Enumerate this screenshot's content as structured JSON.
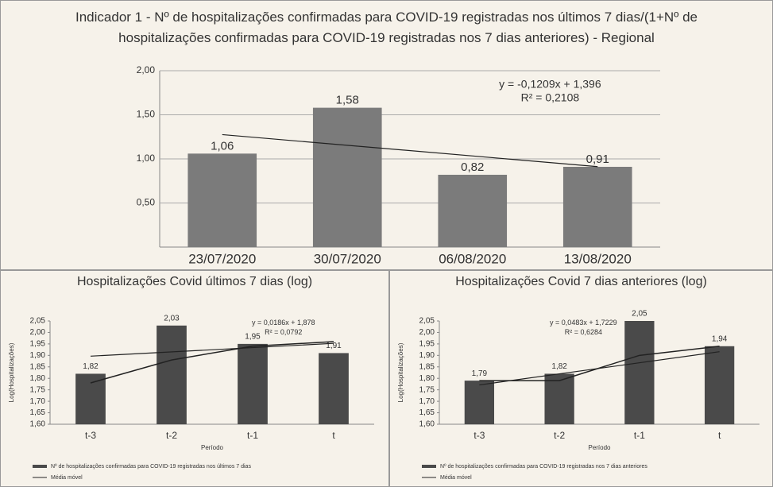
{
  "chart_data": [
    {
      "type": "bar",
      "title": "Indicador 1 - Nº de hospitalizações confirmadas para COVID-19 registradas nos últimos 7 dias/(1+Nº de hospitalizações confirmadas para COVID-19 registradas nos 7 dias anteriores) - Regional",
      "categories": [
        "23/07/2020",
        "30/07/2020",
        "06/08/2020",
        "13/08/2020"
      ],
      "series": [
        {
          "color": "#7b7b7b",
          "values": [
            1.06,
            1.58,
            0.82,
            0.91
          ],
          "value_labels": [
            "1,06",
            "1,58",
            "0,82",
            "0,91"
          ]
        }
      ],
      "ylim": [
        0,
        2.0
      ],
      "yticks": [
        {
          "value": 0.5,
          "label": "0,50"
        },
        {
          "value": 1.0,
          "label": "1,00"
        },
        {
          "value": 1.5,
          "label": "1,50"
        },
        {
          "value": 2.0,
          "label": "2,00"
        }
      ],
      "grid": true,
      "trendline": {
        "slope": -0.1209,
        "intercept": 1.396,
        "equation": "y = -0,1209x + 1,396",
        "r2": "R² = 0,2108"
      }
    },
    {
      "type": "bar",
      "title": "Hospitalizações Covid últimos 7 dias (log)",
      "y_label": "Log(Hospitalizações)",
      "x_label": "Período",
      "categories": [
        "t-3",
        "t-2",
        "t-1",
        "t"
      ],
      "series": [
        {
          "name": "Nº de hospitalizações confirmadas para COVID-19 registradas nos últimos 7 dias",
          "color": "#4a4a4a",
          "values": [
            1.82,
            2.03,
            1.95,
            1.91
          ],
          "value_labels": [
            "1,82",
            "2,03",
            "1,95",
            "1,91"
          ]
        },
        {
          "name": "Média móvel",
          "type": "line",
          "color": "#222222",
          "values": [
            1.78,
            1.88,
            1.94,
            1.96
          ]
        }
      ],
      "ylim": [
        1.6,
        2.05
      ],
      "yticks": [
        {
          "value": 1.6,
          "label": "1,60"
        },
        {
          "value": 1.65,
          "label": "1,65"
        },
        {
          "value": 1.7,
          "label": "1,70"
        },
        {
          "value": 1.75,
          "label": "1,75"
        },
        {
          "value": 1.8,
          "label": "1,80"
        },
        {
          "value": 1.85,
          "label": "1,85"
        },
        {
          "value": 1.9,
          "label": "1,90"
        },
        {
          "value": 1.95,
          "label": "1,95"
        },
        {
          "value": 2.0,
          "label": "2,00"
        },
        {
          "value": 2.05,
          "label": "2,05"
        }
      ],
      "grid": false,
      "trendline": {
        "slope": 0.0186,
        "intercept": 1.878,
        "equation": "y = 0,0186x + 1,878",
        "r2": "R² = 0,0792"
      }
    },
    {
      "type": "bar",
      "title": "Hospitalizações Covid 7 dias anteriores (log)",
      "y_label": "Log(Hospitalizações)",
      "x_label": "Período",
      "categories": [
        "t-3",
        "t-2",
        "t-1",
        "t"
      ],
      "series": [
        {
          "name": "Nº de hospitalizações confirmadas para COVID-19 registradas nos 7 dias anteriores",
          "color": "#4a4a4a",
          "values": [
            1.79,
            1.82,
            2.05,
            1.94
          ],
          "value_labels": [
            "1,79",
            "1,82",
            "2,05",
            "1,94"
          ]
        },
        {
          "name": "Média móvel",
          "type": "line",
          "color": "#222222",
          "values": [
            1.79,
            1.79,
            1.9,
            1.94
          ]
        }
      ],
      "ylim": [
        1.6,
        2.05
      ],
      "yticks": [
        {
          "value": 1.6,
          "label": "1,60"
        },
        {
          "value": 1.65,
          "label": "1,65"
        },
        {
          "value": 1.7,
          "label": "1,70"
        },
        {
          "value": 1.75,
          "label": "1,75"
        },
        {
          "value": 1.8,
          "label": "1,80"
        },
        {
          "value": 1.85,
          "label": "1,85"
        },
        {
          "value": 1.9,
          "label": "1,90"
        },
        {
          "value": 1.95,
          "label": "1,95"
        },
        {
          "value": 2.0,
          "label": "2,00"
        },
        {
          "value": 2.05,
          "label": "2,05"
        }
      ],
      "grid": false,
      "trendline": {
        "slope": 0.0483,
        "intercept": 1.7229,
        "equation": "y = 0,0483x + 1,7229",
        "r2": "R² = 0,6284"
      }
    }
  ]
}
